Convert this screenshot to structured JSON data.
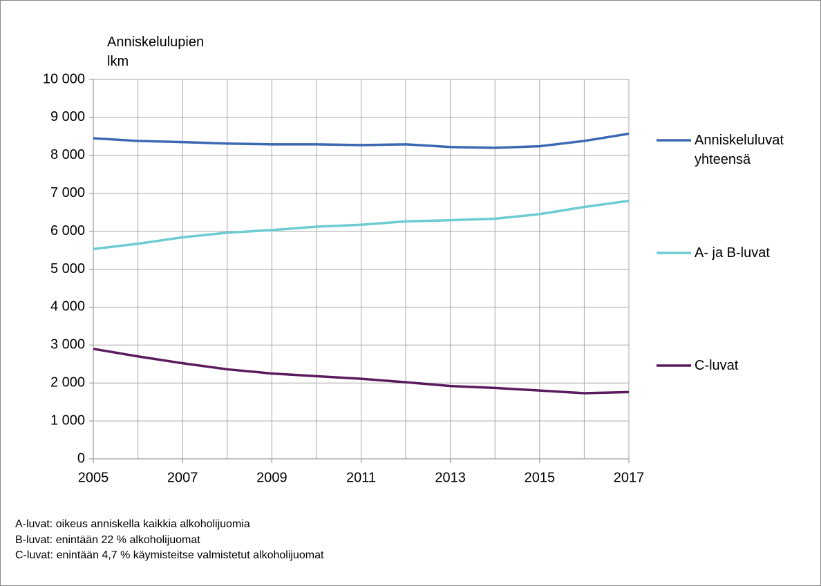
{
  "chart_data": {
    "type": "line",
    "y_axis_label": "Anniskelulupien lkm",
    "x": [
      2005,
      2006,
      2007,
      2008,
      2009,
      2010,
      2011,
      2012,
      2013,
      2014,
      2015,
      2016,
      2017
    ],
    "series": [
      {
        "name": "Anniskeluluvat yhteensä",
        "color": "#3b68b2",
        "values": [
          8450,
          8380,
          8350,
          8310,
          8290,
          8290,
          8270,
          8290,
          8220,
          8200,
          8240,
          8380,
          8570
        ]
      },
      {
        "name": "A- ja B-luvat",
        "color": "#6dcbd2",
        "values": [
          5530,
          5670,
          5840,
          5960,
          6030,
          6120,
          6170,
          6260,
          6290,
          6330,
          6450,
          6640,
          6800
        ]
      },
      {
        "name": "C-luvat",
        "color": "#5a1a5e",
        "values": [
          2900,
          2700,
          2520,
          2360,
          2250,
          2180,
          2110,
          2020,
          1920,
          1870,
          1800,
          1730,
          1760
        ]
      }
    ],
    "xlim": [
      2005,
      2017
    ],
    "xticks": [
      2005,
      2007,
      2009,
      2011,
      2013,
      2015,
      2017
    ],
    "ylim": [
      0,
      10000
    ],
    "yticks": [
      0,
      {
        "value": 1000,
        "label": "1 000"
      },
      {
        "value": 2000,
        "label": "2 000"
      },
      {
        "value": 3000,
        "label": "3 000"
      },
      {
        "value": 4000,
        "label": "4 000"
      },
      {
        "value": 5000,
        "label": "5 000"
      },
      {
        "value": 6000,
        "label": "6 000"
      },
      {
        "value": 7000,
        "label": "7 000"
      },
      {
        "value": 8000,
        "label": "8 000"
      },
      {
        "value": 9000,
        "label": "9 000"
      },
      {
        "value": 10000,
        "label": "10 000"
      }
    ],
    "grid": true,
    "legend": "right",
    "notes": [
      "A-luvat: oikeus anniskella kaikkia alkoholijuomia",
      "B-luvat: enintään 22 % alkoholijuomat",
      "C-luvat: enintään 4,7 % käymisteitse valmistetut alkoholijuomat"
    ]
  }
}
